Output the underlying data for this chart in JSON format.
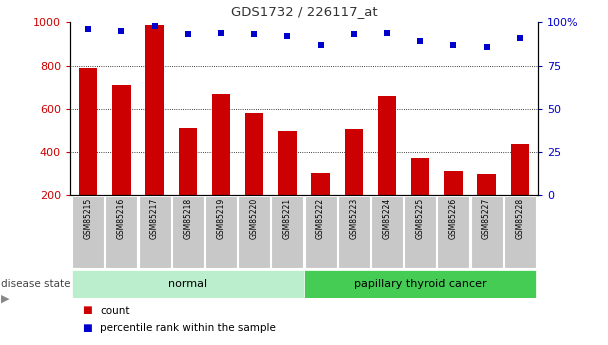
{
  "title": "GDS1732 / 226117_at",
  "samples": [
    "GSM85215",
    "GSM85216",
    "GSM85217",
    "GSM85218",
    "GSM85219",
    "GSM85220",
    "GSM85221",
    "GSM85222",
    "GSM85223",
    "GSM85224",
    "GSM85225",
    "GSM85226",
    "GSM85227",
    "GSM85228"
  ],
  "counts": [
    790,
    710,
    990,
    510,
    670,
    580,
    495,
    300,
    505,
    660,
    370,
    310,
    295,
    435
  ],
  "percentiles": [
    96,
    95,
    98,
    93,
    94,
    93,
    92,
    87,
    93,
    94,
    89,
    87,
    86,
    91
  ],
  "bar_bottom": 200,
  "ylim_left": [
    200,
    1000
  ],
  "ylim_right": [
    0,
    100
  ],
  "yticks_left": [
    200,
    400,
    600,
    800,
    1000
  ],
  "ytick_labels_left": [
    "200",
    "400",
    "600",
    "800",
    "1000"
  ],
  "yticks_right": [
    0,
    25,
    50,
    75,
    100
  ],
  "ytick_labels_right": [
    "0",
    "25",
    "50",
    "75",
    "100%"
  ],
  "bar_color": "#cc0000",
  "dot_color": "#0000cc",
  "groups": [
    {
      "label": "normal",
      "start": 0,
      "end": 7,
      "color": "#aaeebb"
    },
    {
      "label": "papillary thyroid cancer",
      "start": 7,
      "end": 14,
      "color": "#55cc66"
    }
  ],
  "disease_state_label": "disease state",
  "background_color": "#ffffff",
  "tick_bg_color": "#c8c8c8",
  "grid_color": "#000000",
  "normal_color": "#bbeecc",
  "cancer_color": "#44cc55"
}
